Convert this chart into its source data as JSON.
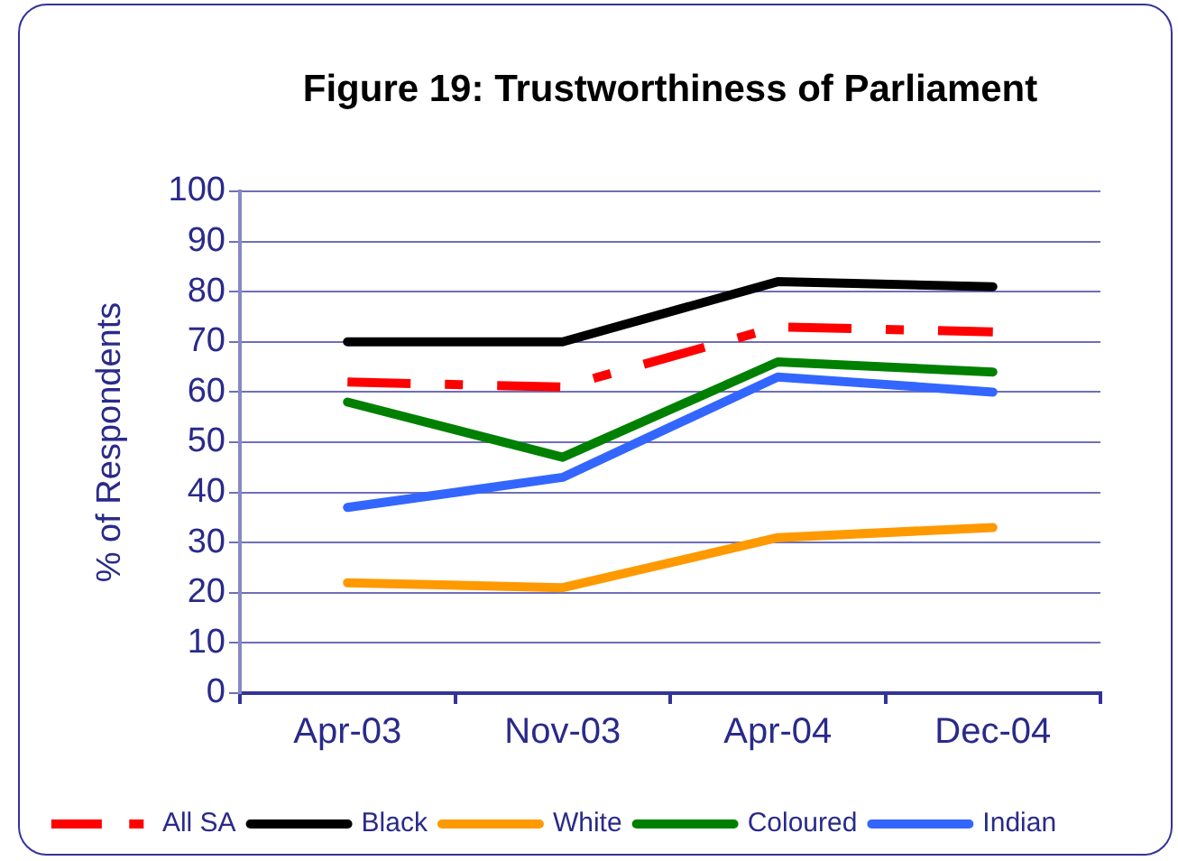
{
  "chart_data": {
    "type": "line",
    "title": "Figure 19: Trustworthiness of Parliament",
    "ylabel": "% of Respondents",
    "categories": [
      "Apr-03",
      "Nov-03",
      "Apr-04",
      "Dec-04"
    ],
    "series": [
      {
        "name": "All SA",
        "color": "#ff0000",
        "values": [
          62,
          61,
          73,
          72
        ],
        "line_style": "dashed"
      },
      {
        "name": "Black",
        "color": "#000000",
        "values": [
          70,
          70,
          82,
          81
        ]
      },
      {
        "name": "White",
        "color": "#ff9900",
        "values": [
          22,
          21,
          31,
          33
        ]
      },
      {
        "name": "Coloured",
        "color": "#008000",
        "values": [
          58,
          47,
          66,
          64
        ]
      },
      {
        "name": "Indian",
        "color": "#3366ff",
        "values": [
          37,
          43,
          63,
          60
        ]
      }
    ],
    "ylim": [
      0,
      100
    ],
    "yticks": [
      0,
      10,
      20,
      30,
      40,
      50,
      60,
      70,
      80,
      90,
      100
    ],
    "grid": "y",
    "legend": "bottom",
    "marker": "none",
    "line_style": "solid"
  }
}
